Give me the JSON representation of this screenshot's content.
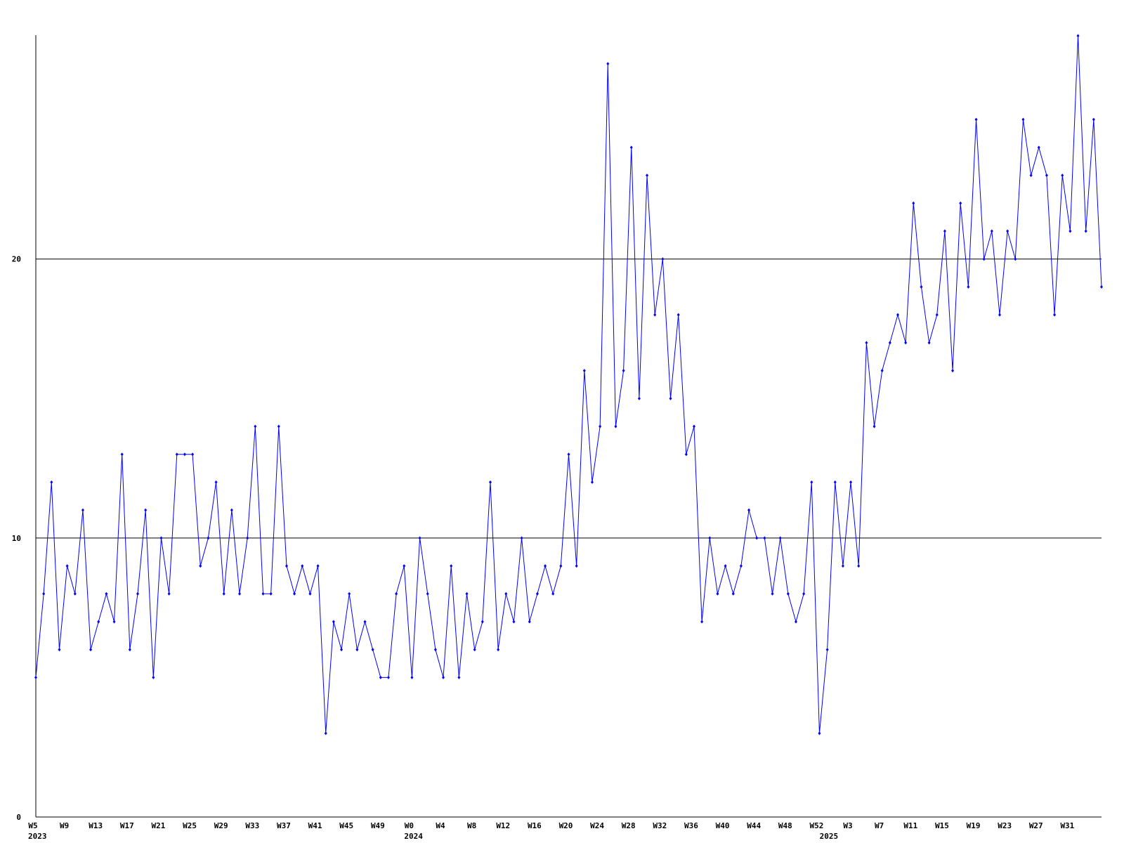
{
  "chart_data": {
    "type": "line",
    "categories": [
      "W5",
      null,
      null,
      null,
      "W9",
      null,
      null,
      null,
      "W13",
      null,
      null,
      null,
      "W17",
      null,
      null,
      null,
      "W21",
      null,
      null,
      null,
      "W25",
      null,
      null,
      null,
      "W29",
      null,
      null,
      null,
      "W33",
      null,
      null,
      null,
      "W37",
      null,
      null,
      null,
      "W41",
      null,
      null,
      null,
      "W45",
      null,
      null,
      null,
      "W49",
      null,
      null,
      null,
      "W0",
      null,
      null,
      null,
      "W4",
      null,
      null,
      null,
      "W8",
      null,
      null,
      null,
      "W12",
      null,
      null,
      null,
      "W16",
      null,
      null,
      null,
      "W20",
      null,
      null,
      null,
      "W24",
      null,
      null,
      null,
      "W28",
      null,
      null,
      null,
      "W32",
      null,
      null,
      null,
      "W36",
      null,
      null,
      null,
      "W40",
      null,
      null,
      null,
      "W44",
      null,
      null,
      null,
      "W48",
      null,
      null,
      null,
      "W52",
      null,
      null,
      null,
      "W3",
      null,
      null,
      null,
      "W7",
      null,
      null,
      null,
      "W11",
      null,
      null,
      null,
      "W15",
      null,
      null,
      null,
      "W19",
      null,
      null,
      null,
      "W23",
      null,
      null,
      null,
      "W27",
      null,
      null,
      null,
      "W31",
      null,
      null,
      null,
      null
    ],
    "category_years": [
      "2023",
      null,
      null,
      null,
      null,
      null,
      null,
      null,
      null,
      null,
      null,
      null,
      null,
      null,
      null,
      null,
      null,
      null,
      null,
      null,
      null,
      null,
      null,
      null,
      null,
      null,
      null,
      null,
      null,
      null,
      null,
      null,
      null,
      null,
      null,
      null,
      null,
      null,
      null,
      null,
      null,
      null,
      null,
      null,
      null,
      null,
      null,
      null,
      "2024",
      null,
      null,
      null,
      null,
      null,
      null,
      null,
      null,
      null,
      null,
      null,
      null,
      null,
      null,
      null,
      null,
      null,
      null,
      null,
      null,
      null,
      null,
      null,
      null,
      null,
      null,
      null,
      null,
      null,
      null,
      null,
      null,
      null,
      null,
      null,
      null,
      null,
      null,
      null,
      null,
      null,
      null,
      null,
      null,
      null,
      null,
      null,
      null,
      null,
      null,
      null,
      null,
      "2025",
      null,
      null,
      null,
      null,
      null,
      null,
      null,
      null,
      null,
      null,
      null,
      null,
      null,
      null,
      null,
      null,
      null,
      null,
      null,
      null,
      null,
      null,
      null,
      null,
      null,
      null,
      null,
      null,
      null,
      null,
      null,
      null,
      null,
      null,
      null
    ],
    "series": [
      {
        "color": "#0000ff",
        "values": [
          5,
          8,
          12,
          6,
          9,
          8,
          11,
          6,
          7,
          8,
          7,
          13,
          6,
          8,
          11,
          5,
          10,
          8,
          13,
          13,
          13,
          9,
          10,
          12,
          8,
          11,
          8,
          10,
          14,
          8,
          8,
          14,
          9,
          8,
          9,
          8,
          9,
          3,
          7,
          6,
          8,
          6,
          7,
          6,
          5,
          5,
          8,
          9,
          5,
          10,
          8,
          6,
          5,
          9,
          5,
          8,
          6,
          7,
          12,
          6,
          8,
          7,
          10,
          7,
          8,
          9,
          8,
          9,
          13,
          9,
          16,
          12,
          14,
          27,
          14,
          16,
          24,
          15,
          23,
          18,
          20,
          15,
          18,
          13,
          14,
          7,
          10,
          8,
          9,
          8,
          9,
          11,
          10,
          10,
          8,
          10,
          8,
          7,
          8,
          12,
          3,
          6,
          12,
          9,
          12,
          9,
          17,
          14,
          16,
          17,
          18,
          17,
          22,
          19,
          17,
          18,
          21,
          16,
          22,
          19,
          25,
          20,
          21,
          18,
          21,
          20,
          25,
          23,
          24,
          23,
          18,
          23,
          21,
          28,
          21,
          25,
          19
        ]
      }
    ],
    "ylim": [
      0,
      28
    ],
    "yticks": [
      0,
      10,
      20
    ],
    "grid": true
  }
}
